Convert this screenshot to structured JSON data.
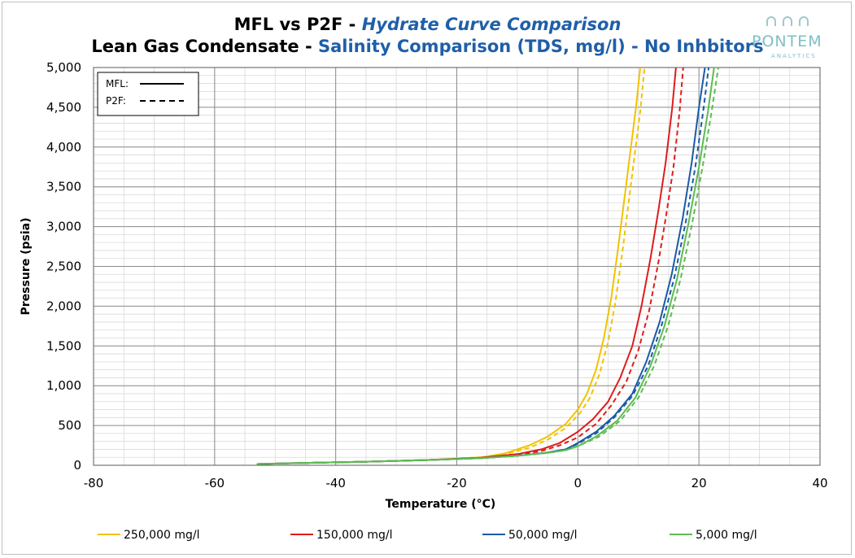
{
  "title": {
    "line1_prefix": "MFL vs P2F - ",
    "line1_suffix": "Hydrate Curve Comparison",
    "line2_prefix": "Lean Gas Condensate - ",
    "line2_suffix": "Salinity Comparison (TDS, mg/l) - No Inhbitors"
  },
  "logo": {
    "name": "PONTEM",
    "sub": "ANALYTICS"
  },
  "chart_data": {
    "type": "line",
    "xlabel": "Temperature (°C)",
    "ylabel": "Pressure (psia)",
    "xlim": [
      -80,
      40
    ],
    "ylim": [
      0,
      5000
    ],
    "x_ticks": [
      -80,
      -60,
      -40,
      -20,
      0,
      20,
      40
    ],
    "x_tick_labels": [
      "-80",
      "-60",
      "-40",
      "-20",
      "0",
      "20",
      "40"
    ],
    "y_ticks": [
      0,
      500,
      1000,
      1500,
      2000,
      2500,
      3000,
      3500,
      4000,
      4500,
      5000
    ],
    "y_tick_labels": [
      "0",
      "500",
      "1,000",
      "1,500",
      "2,000",
      "2,500",
      "3,000",
      "3,500",
      "4,000",
      "4,500",
      "5,000"
    ],
    "grid": true,
    "inner_legend": {
      "placement": "top-left",
      "items": [
        {
          "label": "MFL:",
          "style": "solid"
        },
        {
          "label": "P2F:",
          "style": "dashed"
        }
      ]
    },
    "bottom_legend": {
      "placement": "bottom",
      "items": [
        {
          "label": "250,000 mg/l",
          "color": "#f2c200"
        },
        {
          "label": "150,000 mg/l",
          "color": "#e01b1b"
        },
        {
          "label": "50,000 mg/l",
          "color": "#1a5aa6"
        },
        {
          "label": "5,000 mg/l",
          "color": "#5cbd4f"
        }
      ]
    },
    "series": [
      {
        "color": "#f2c200",
        "style": "solid",
        "x": [
          -53,
          -45,
          -35,
          -25,
          -16,
          -12,
          -8,
          -5,
          -2,
          0,
          1.5,
          3,
          4.3,
          5.5,
          6.6,
          7.6,
          8.6,
          9.6,
          10.3
        ],
        "y": [
          15,
          30,
          45,
          65,
          100,
          150,
          250,
          360,
          520,
          700,
          900,
          1200,
          1600,
          2100,
          2700,
          3300,
          3900,
          4500,
          5000
        ]
      },
      {
        "color": "#f2c200",
        "style": "dashed",
        "x": [
          -53,
          -45,
          -35,
          -25,
          -16,
          -12,
          -8,
          -5,
          -2,
          0.3,
          2,
          3.6,
          5,
          6.2,
          7.3,
          8.3,
          9.3,
          10.3,
          11
        ],
        "y": [
          15,
          30,
          45,
          65,
          100,
          140,
          220,
          320,
          470,
          650,
          850,
          1150,
          1550,
          2050,
          2650,
          3250,
          3850,
          4450,
          5000
        ]
      },
      {
        "color": "#e01b1b",
        "style": "solid",
        "x": [
          -53,
          -45,
          -35,
          -25,
          -16,
          -10,
          -6,
          -3,
          0,
          2.5,
          5,
          7,
          9,
          10.5,
          12,
          13.3,
          14.5,
          15.6,
          16.2
        ],
        "y": [
          15,
          30,
          45,
          65,
          95,
          140,
          200,
          280,
          420,
          580,
          800,
          1100,
          1500,
          2000,
          2600,
          3200,
          3800,
          4500,
          5000
        ]
      },
      {
        "color": "#e01b1b",
        "style": "dashed",
        "x": [
          -53,
          -45,
          -35,
          -25,
          -16,
          -10,
          -6,
          -3,
          0,
          3,
          5.5,
          8,
          10,
          11.8,
          13.3,
          14.6,
          15.8,
          16.8,
          17.4
        ],
        "y": [
          15,
          30,
          45,
          65,
          95,
          130,
          180,
          250,
          350,
          520,
          750,
          1050,
          1450,
          1950,
          2550,
          3150,
          3750,
          4450,
          5000
        ]
      },
      {
        "color": "#1a5aa6",
        "style": "solid",
        "x": [
          -53,
          -45,
          -35,
          -25,
          -16,
          -10,
          -5,
          -2,
          0,
          3,
          6,
          9,
          11.3,
          13.5,
          15.5,
          17.3,
          18.8,
          20,
          21
        ],
        "y": [
          15,
          30,
          45,
          65,
          90,
          120,
          160,
          200,
          280,
          420,
          620,
          900,
          1300,
          1800,
          2400,
          3100,
          3800,
          4500,
          5000
        ]
      },
      {
        "color": "#1a5aa6",
        "style": "dashed",
        "x": [
          -53,
          -45,
          -35,
          -25,
          -16,
          -10,
          -5,
          -2,
          0,
          3,
          6,
          9,
          11.6,
          13.8,
          15.9,
          17.8,
          19.4,
          20.7,
          21.6
        ],
        "y": [
          15,
          30,
          45,
          65,
          90,
          120,
          160,
          200,
          270,
          400,
          600,
          870,
          1250,
          1750,
          2350,
          3050,
          3750,
          4450,
          5000
        ]
      },
      {
        "color": "#5cbd4f",
        "style": "solid",
        "x": [
          -53,
          -45,
          -35,
          -25,
          -16,
          -10,
          -5,
          -2,
          0,
          3,
          6.5,
          9.5,
          12,
          14.3,
          16.4,
          18.3,
          20,
          21.5,
          22.5
        ],
        "y": [
          15,
          30,
          45,
          65,
          90,
          120,
          155,
          190,
          240,
          360,
          560,
          850,
          1250,
          1750,
          2350,
          3050,
          3750,
          4450,
          5000
        ]
      },
      {
        "color": "#5cbd4f",
        "style": "dashed",
        "x": [
          -53,
          -45,
          -35,
          -25,
          -16,
          -10,
          -5,
          -2,
          0,
          3.5,
          7,
          10,
          12.6,
          14.9,
          17,
          18.9,
          20.6,
          22.1,
          23.2
        ],
        "y": [
          15,
          30,
          45,
          65,
          90,
          120,
          155,
          190,
          240,
          360,
          560,
          850,
          1250,
          1750,
          2350,
          3050,
          3750,
          4450,
          5000
        ]
      }
    ]
  }
}
